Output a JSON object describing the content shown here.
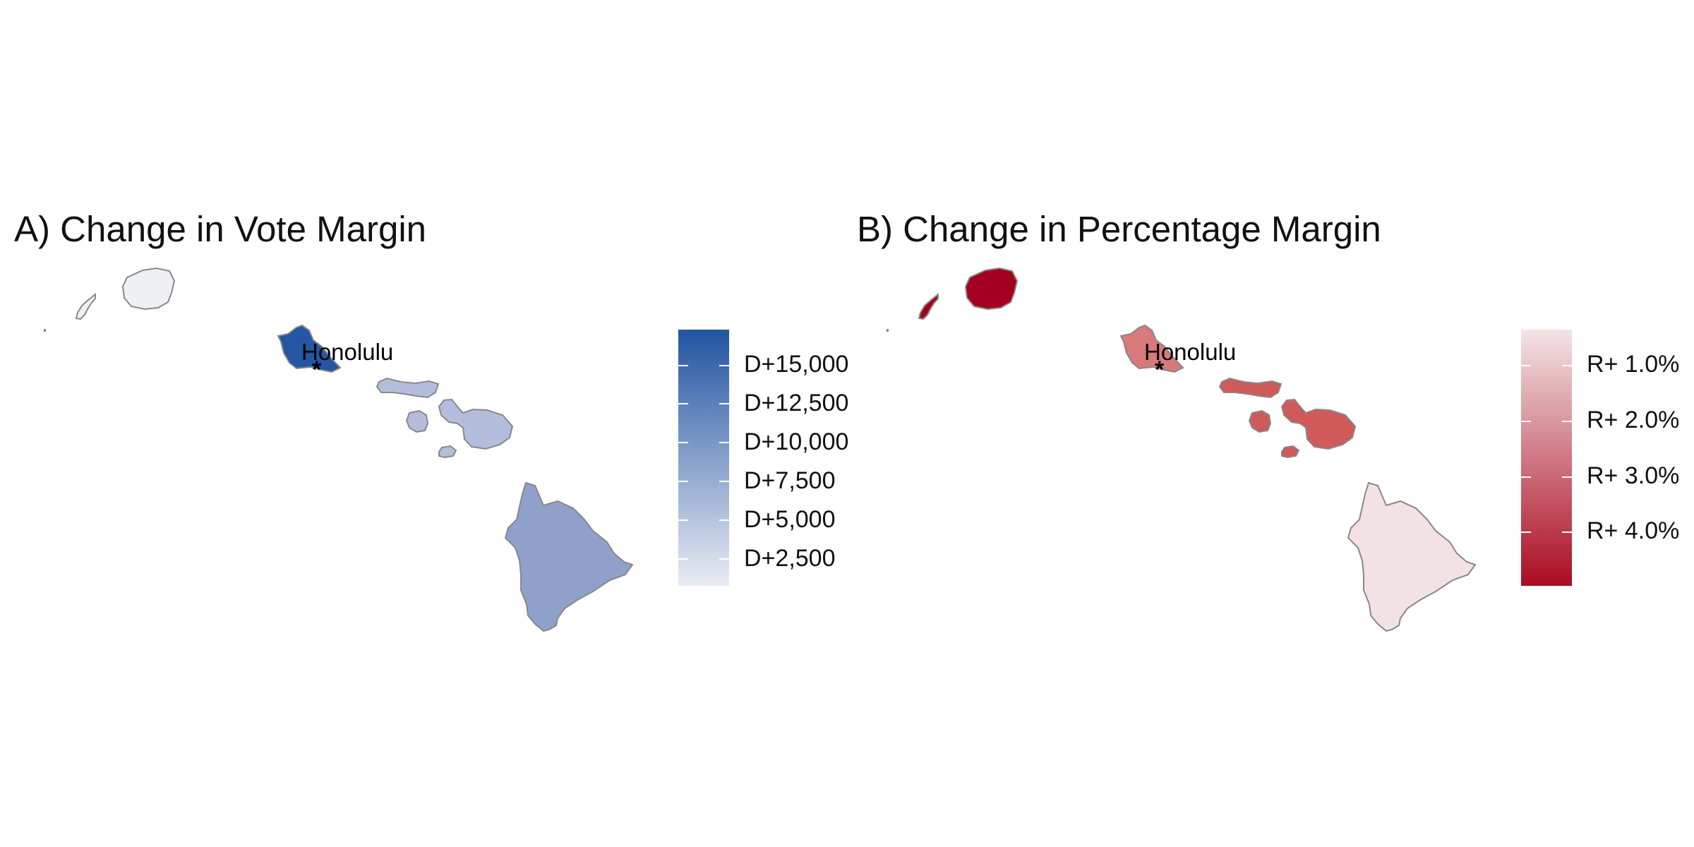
{
  "panels": [
    {
      "title": "A) Change in Vote Margin",
      "city": "Honolulu",
      "marker": "*",
      "legend_labels": [
        "D+15,000",
        "D+12,500",
        "D+10,000",
        "D+7,500",
        "D+5,000",
        "D+2,500"
      ],
      "colors": {
        "legend_top": "#2154a1",
        "legend_bottom": "#e9ecf3",
        "oahu": "#2456a3",
        "kauai": "#eef0f4",
        "niihau": "#eef0f4",
        "molokai": "#b5bddd",
        "lanai": "#b5bddd",
        "maui": "#b5bddd",
        "kahoolawe": "#b5bddd",
        "hawaii": "#8fa1ca"
      }
    },
    {
      "title": "B) Change in Percentage Margin",
      "city": "Honolulu",
      "marker": "*",
      "legend_labels": [
        "R+ 1.0%",
        "R+ 2.0%",
        "R+ 3.0%",
        "R+ 4.0%"
      ],
      "colors": {
        "legend_top": "#f3e4e5",
        "legend_bottom": "#ab0c22",
        "oahu": "#d8797b",
        "kauai": "#a3001f",
        "niihau": "#a3001f",
        "molokai": "#d0595a",
        "lanai": "#d0595a",
        "maui": "#d0595a",
        "kahoolawe": "#d0595a",
        "hawaii": "#f3e2e3"
      }
    }
  ]
}
